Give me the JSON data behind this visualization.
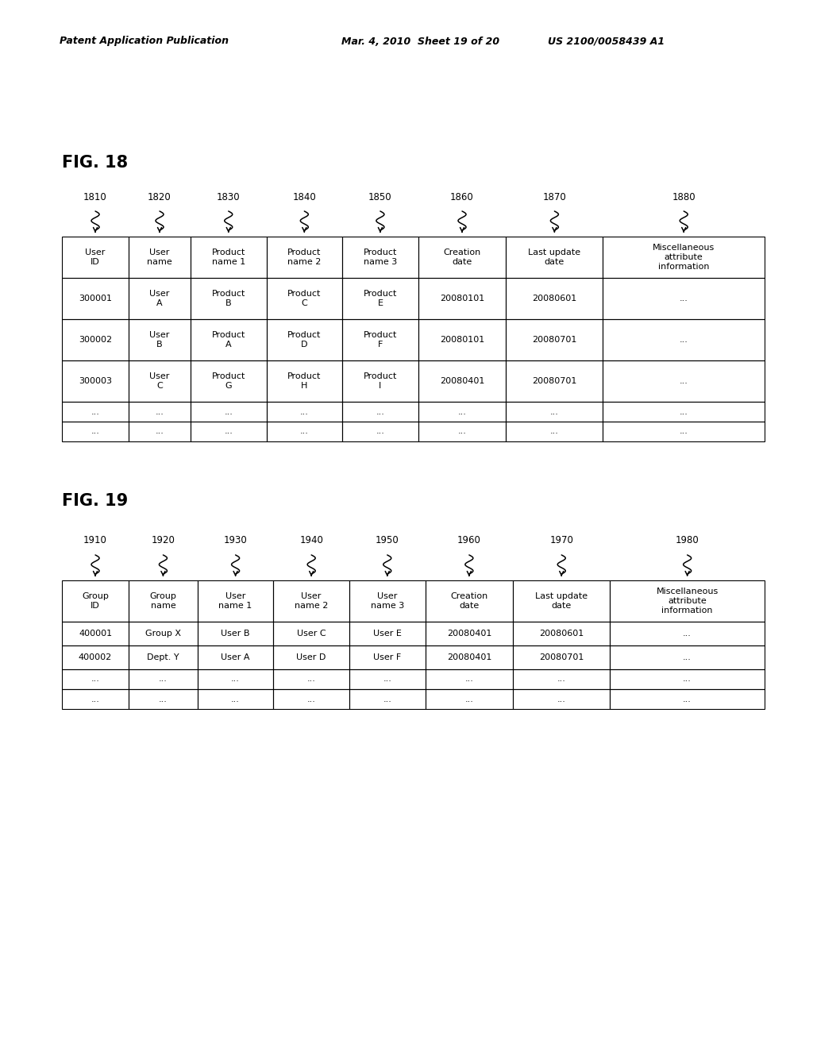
{
  "header_left": "Patent Application Publication",
  "header_mid": "Mar. 4, 2010  Sheet 19 of 20",
  "header_right": "US 2100/0058439 A1",
  "header_full": "Patent Application Publication        Mar. 4, 2010  Sheet 19 of 20        US 2100/0058439 A1",
  "fig18_label": "FIG. 18",
  "fig19_label": "FIG. 19",
  "fig18_col_labels": [
    "1810",
    "1820",
    "1830",
    "1840",
    "1850",
    "1860",
    "1870",
    "1880"
  ],
  "fig18_headers": [
    "User\nID",
    "User\nname",
    "Product\nname 1",
    "Product\nname 2",
    "Product\nname 3",
    "Creation\ndate",
    "Last update\ndate",
    "Miscellaneous\nattribute\ninformation"
  ],
  "fig18_rows": [
    [
      "300001",
      "User\nA",
      "Product\nB",
      "Product\nC",
      "Product\nE",
      "20080101",
      "20080601",
      "..."
    ],
    [
      "300002",
      "User\nB",
      "Product\nA",
      "Product\nD",
      "Product\nF",
      "20080101",
      "20080701",
      "..."
    ],
    [
      "300003",
      "User\nC",
      "Product\nG",
      "Product\nH",
      "Product\nI",
      "20080401",
      "20080701",
      "..."
    ],
    [
      "...",
      "...",
      "...",
      "...",
      "...",
      "...",
      "...",
      "..."
    ],
    [
      "...",
      "...",
      "...",
      "...",
      "...",
      "...",
      "...",
      "..."
    ]
  ],
  "fig19_col_labels": [
    "1910",
    "1920",
    "1930",
    "1940",
    "1950",
    "1960",
    "1970",
    "1980"
  ],
  "fig19_headers": [
    "Group\nID",
    "Group\nname",
    "User\nname 1",
    "User\nname 2",
    "User\nname 3",
    "Creation\ndate",
    "Last update\ndate",
    "Miscellaneous\nattribute\ninformation"
  ],
  "fig19_rows": [
    [
      "400001",
      "Group X",
      "User B",
      "User C",
      "User E",
      "20080401",
      "20080601",
      "..."
    ],
    [
      "400002",
      "Dept. Y",
      "User A",
      "User D",
      "User F",
      "20080401",
      "20080701",
      "..."
    ],
    [
      "...",
      "...",
      "...",
      "...",
      "...",
      "...",
      "...",
      "..."
    ],
    [
      "...",
      "...",
      "...",
      "...",
      "...",
      "...",
      "...",
      "..."
    ]
  ],
  "bg_color": "#ffffff",
  "text_color": "#000000"
}
